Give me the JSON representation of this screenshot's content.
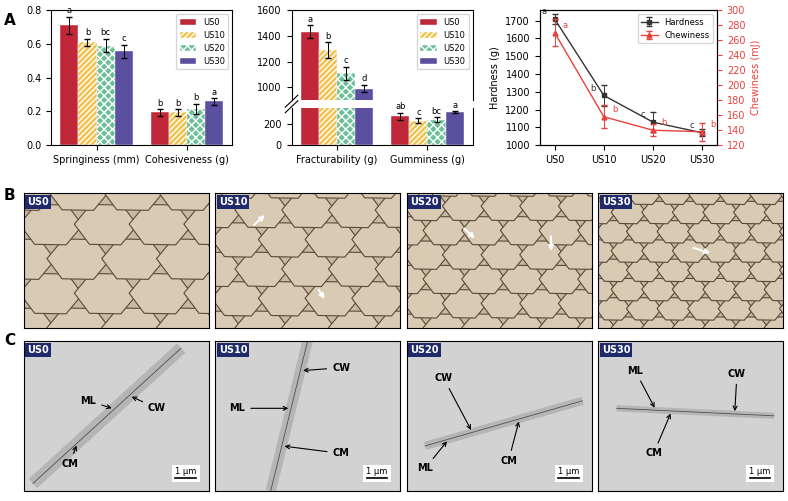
{
  "chart_data": [
    {
      "type": "bar",
      "categories": [
        "Springiness (mm)",
        "Cohesiveness (g)"
      ],
      "ylim": [
        0.0,
        0.8
      ],
      "yticks": [
        0.0,
        0.2,
        0.4,
        0.6,
        0.8
      ],
      "legend": "upper right",
      "series": [
        {
          "name": "US0",
          "color": "#c0283a",
          "values": [
            0.71,
            0.195
          ],
          "errors": [
            0.05,
            0.02
          ],
          "letters": [
            "a",
            "b"
          ]
        },
        {
          "name": "US10",
          "color": "#f2c14e",
          "values": [
            0.61,
            0.195
          ],
          "errors": [
            0.02,
            0.02
          ],
          "letters": [
            "b",
            "b"
          ]
        },
        {
          "name": "US20",
          "color": "#6dbf99",
          "values": [
            0.59,
            0.215
          ],
          "errors": [
            0.04,
            0.03
          ],
          "letters": [
            "bc",
            "b"
          ]
        },
        {
          "name": "US30",
          "color": "#5b4fa0",
          "values": [
            0.555,
            0.26
          ],
          "errors": [
            0.04,
            0.02
          ],
          "letters": [
            "c",
            "a"
          ]
        }
      ]
    },
    {
      "type": "bar",
      "categories": [
        "Fracturability (g)",
        "Gumminess (g)"
      ],
      "ylim": [
        0,
        1600
      ],
      "yticks": [
        0,
        200,
        1000,
        1200,
        1400,
        1600
      ],
      "axis_break": [
        350,
        900
      ],
      "legend": "upper right",
      "series": [
        {
          "name": "US0",
          "color": "#c0283a",
          "values": [
            1430,
            270
          ],
          "errors": [
            50,
            35
          ],
          "letters": [
            "a",
            "ab"
          ]
        },
        {
          "name": "US10",
          "color": "#f2c14e",
          "values": [
            1290,
            230
          ],
          "errors": [
            60,
            20
          ],
          "letters": [
            "b",
            "c"
          ]
        },
        {
          "name": "US20",
          "color": "#6dbf99",
          "values": [
            1110,
            240
          ],
          "errors": [
            50,
            20
          ],
          "letters": [
            "c",
            "bc"
          ]
        },
        {
          "name": "US30",
          "color": "#5b4fa0",
          "values": [
            990,
            310
          ],
          "errors": [
            30,
            10
          ],
          "letters": [
            "d",
            "a"
          ]
        }
      ]
    },
    {
      "type": "line",
      "categories": [
        "US0",
        "US10",
        "US20",
        "US30"
      ],
      "y_label": "Hardness (g)",
      "y2_label": "Chewiness (mJ)",
      "ylim": [
        1000,
        1760
      ],
      "yticks": [
        1000,
        1100,
        1200,
        1300,
        1400,
        1500,
        1600,
        1700
      ],
      "y2lim": [
        120,
        300
      ],
      "y2ticks": [
        120,
        140,
        160,
        180,
        200,
        220,
        240,
        260,
        280,
        300
      ],
      "legend": "upper right",
      "series": [
        {
          "name": "Hardness",
          "color": "#333333",
          "marker": "square",
          "values": [
            1710,
            1280,
            1130,
            1070
          ],
          "errors": [
            30,
            60,
            55,
            20
          ],
          "letters": [
            "a",
            "b",
            "c",
            "c"
          ]
        },
        {
          "name": "Chewiness",
          "color": "#e8413c",
          "marker": "triangle",
          "axis": "y2",
          "values": [
            270,
            158,
            140,
            138
          ],
          "errors": [
            18,
            15,
            8,
            12
          ],
          "letters": [
            "a",
            "b",
            "b",
            "b"
          ]
        }
      ]
    }
  ],
  "panel_labels": [
    "A",
    "B",
    "C"
  ],
  "micrographs": {
    "B": [
      {
        "label": "US0"
      },
      {
        "label": "US10"
      },
      {
        "label": "US20"
      },
      {
        "label": "US30"
      }
    ],
    "C": [
      {
        "label": "US0",
        "annotations": [
          "ML",
          "CW",
          "CM"
        ],
        "scale_bar": "1 μm"
      },
      {
        "label": "US10",
        "annotations": [
          "ML",
          "CW",
          "CM"
        ],
        "scale_bar": "1 μm"
      },
      {
        "label": "US20",
        "annotations": [
          "CW",
          "ML",
          "CM"
        ],
        "scale_bar": "1 μm"
      },
      {
        "label": "US30",
        "annotations": [
          "ML",
          "CM",
          "CW"
        ],
        "scale_bar": "1 μm"
      }
    ]
  }
}
